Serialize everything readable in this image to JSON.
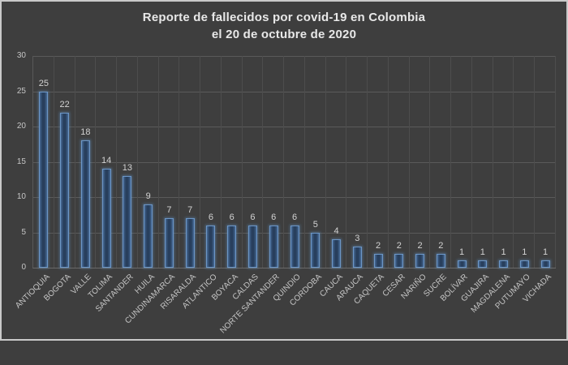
{
  "title": {
    "line1": "Reporte de fallecidos por covid-19 en Colombia",
    "line2": "el 20 de octubre de 2020"
  },
  "chart_data": {
    "type": "bar",
    "title": "Reporte de fallecidos por covid-19 en Colombia el 20 de octubre de 2020",
    "categories": [
      "ANTIOQUIA",
      "BOGOTA",
      "VALLE",
      "TOLIMA",
      "SANTANDER",
      "HUILA",
      "CUNDINAMARCA",
      "RISARALDA",
      "ATLANTICO",
      "BOYACA",
      "CALDAS",
      "NORTE SANTANDER",
      "QUINDIO",
      "CORDOBA",
      "CAUCA",
      "ARAUCA",
      "CAQUETA",
      "CESAR",
      "NARIÑO",
      "SUCRE",
      "BOLÍVAR",
      "GUAJIRA",
      "MAGDALENA",
      "PUTUMAYO",
      "VICHADA"
    ],
    "values": [
      25,
      22,
      18,
      14,
      13,
      9,
      7,
      7,
      6,
      6,
      6,
      6,
      6,
      5,
      4,
      3,
      2,
      2,
      2,
      2,
      1,
      1,
      1,
      1,
      1
    ],
    "data_labels_shown": true,
    "xlabel": "",
    "ylabel": "",
    "ylim": [
      0,
      30
    ],
    "yticks": [
      0,
      5,
      10,
      15,
      20,
      25,
      30
    ],
    "grid": true,
    "legend": false,
    "colors": {
      "background": "#3e3e3e",
      "frame_border": "#c9c9c9",
      "bar_fill": "#283f5d",
      "bar_border": "#6c96c6",
      "h_gridline": "#5a5a5a",
      "v_gridline": "#4d4d4d",
      "title_text": "#e8e8e8",
      "axis_text": "#c6c6c6",
      "data_label_text": "#d2d2d2"
    }
  }
}
